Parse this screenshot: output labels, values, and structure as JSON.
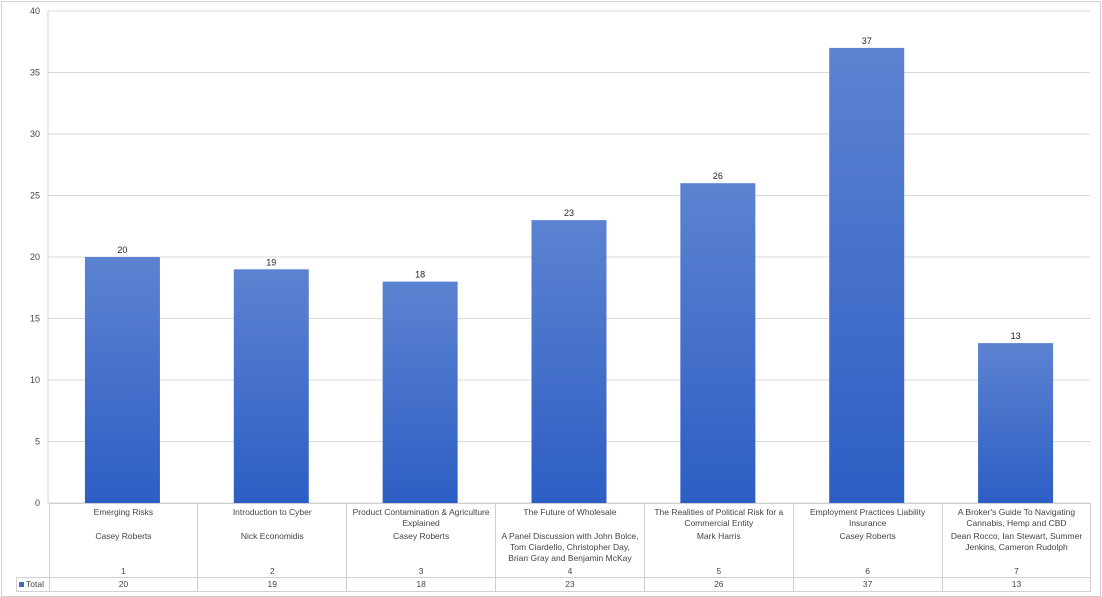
{
  "chart_data": {
    "type": "bar",
    "title": "",
    "xlabel": "",
    "ylabel": "",
    "ylim": [
      0,
      40
    ],
    "yticks": [
      0,
      5,
      10,
      15,
      20,
      25,
      30,
      35,
      40
    ],
    "grid": true,
    "legend": "bottom-left (data table)",
    "categories": [
      {
        "title": "Emerging Risks",
        "speaker": "Casey Roberts",
        "number": "1"
      },
      {
        "title": "Introduction to Cyber",
        "speaker": "Nick Economidis",
        "number": "2"
      },
      {
        "title": "Product Contamination & Agriculture Explained",
        "speaker": "Casey Roberts",
        "number": "3"
      },
      {
        "title": "The Future of Wholesale",
        "speaker": "A Panel Discussion with John Bolce, Tom Ciardello, Christopher Day, Brian Gray and Benjamin McKay",
        "number": "4"
      },
      {
        "title": "The Realities of Political Risk for a Commercial Entity",
        "speaker": "Mark Harris",
        "number": "5"
      },
      {
        "title": "Employment Practices Liability Insurance",
        "speaker": "Casey Roberts",
        "number": "6"
      },
      {
        "title": "A Broker's Guide To Navigating Cannabis, Hemp and CBD",
        "speaker": "Dean Rocco, Ian Stewart, Summer Jenkins, Cameron  Rudolph",
        "number": "7"
      }
    ],
    "series": [
      {
        "name": "Total",
        "values": [
          20,
          19,
          18,
          23,
          26,
          37,
          13
        ],
        "color": "#3d6cc9"
      }
    ]
  }
}
